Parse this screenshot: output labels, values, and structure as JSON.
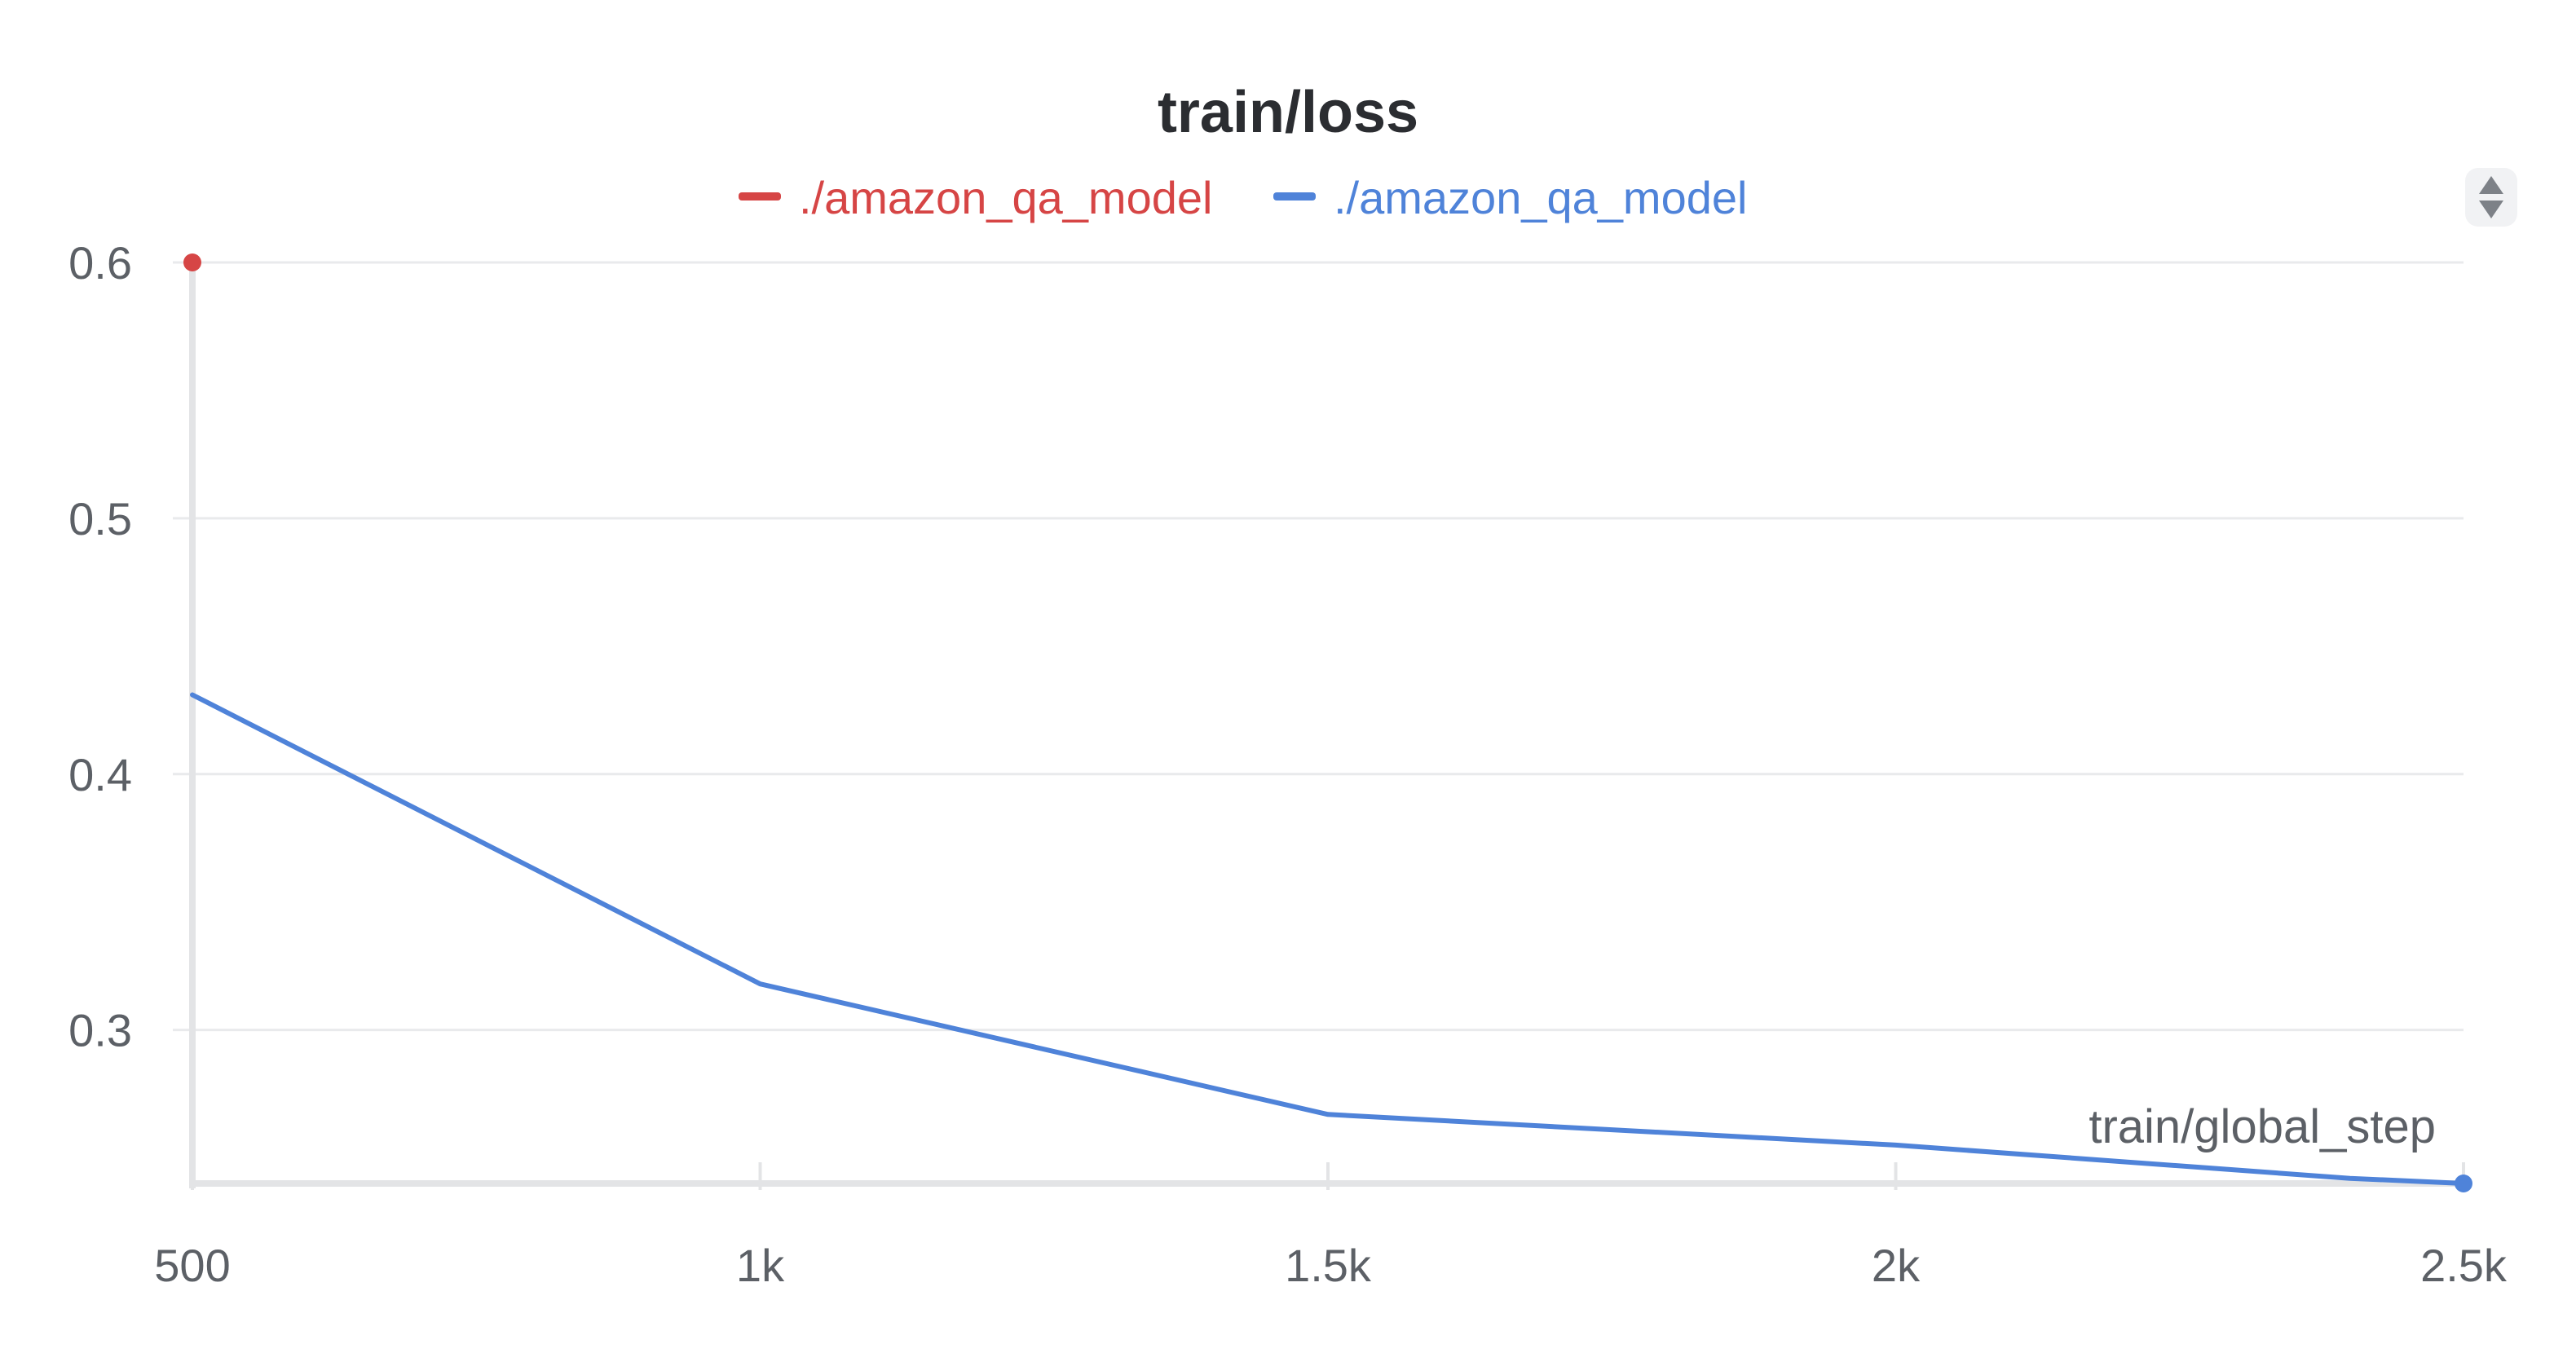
{
  "chart_data": {
    "type": "line",
    "title": "train/loss",
    "xlabel": "train/global_step",
    "ylabel": "",
    "xlim": [
      500,
      2500
    ],
    "ylim": [
      0.24,
      0.6
    ],
    "x_ticks": [
      {
        "value": 500,
        "label": "500"
      },
      {
        "value": 1000,
        "label": "1k"
      },
      {
        "value": 1500,
        "label": "1.5k"
      },
      {
        "value": 2000,
        "label": "2k"
      },
      {
        "value": 2500,
        "label": "2.5k"
      }
    ],
    "y_ticks": [
      {
        "value": 0.6,
        "label": "0.6"
      },
      {
        "value": 0.5,
        "label": "0.5"
      },
      {
        "value": 0.4,
        "label": "0.4"
      },
      {
        "value": 0.3,
        "label": "0.3"
      }
    ],
    "grid": true,
    "legend": "top-center",
    "series": [
      {
        "name": "./amazon_qa_model",
        "color": "#d64545",
        "x": [
          500
        ],
        "y": [
          0.6
        ]
      },
      {
        "name": "./amazon_qa_model",
        "color": "#4f83d9",
        "x": [
          500,
          1000,
          1500,
          2000,
          2400,
          2500
        ],
        "y": [
          0.431,
          0.318,
          0.267,
          0.255,
          0.242,
          0.24
        ]
      }
    ]
  }
}
